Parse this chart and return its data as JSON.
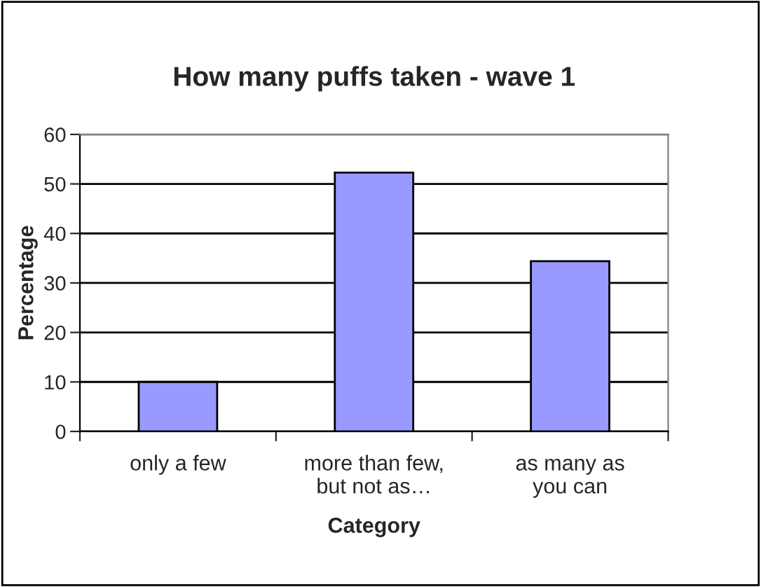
{
  "chart_data": {
    "type": "bar",
    "title": "How many puffs taken - wave 1",
    "xlabel": "Category",
    "ylabel": "Percentage",
    "categories": [
      "only a few",
      "more than few,\nbut not as…",
      "as many as\nyou can"
    ],
    "values": [
      10,
      52.3,
      34.4
    ],
    "color": "#9999ff",
    "ylim": [
      0,
      60
    ],
    "yticks": [
      0,
      10,
      20,
      30,
      40,
      50,
      60
    ],
    "grid": "y",
    "legend": false
  }
}
